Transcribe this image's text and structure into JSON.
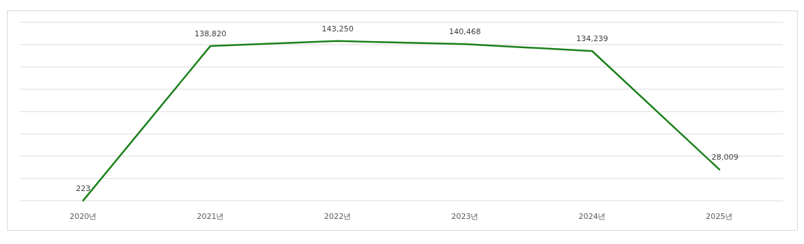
{
  "chart_data": {
    "type": "line",
    "categories": [
      "2020년",
      "2021년",
      "2022년",
      "2023년",
      "2024년",
      "2025년"
    ],
    "values": [
      223,
      138820,
      143250,
      140468,
      134239,
      28009
    ],
    "color": "#1a801a",
    "ylim": [
      0,
      160000
    ],
    "yticks": [
      {
        "value": 0,
        "label": null
      },
      {
        "value": 20000,
        "label": null
      },
      {
        "value": 40000,
        "label": null
      },
      {
        "value": 60000,
        "label": null
      },
      {
        "value": 80000,
        "label": null
      },
      {
        "value": 100000,
        "label": null
      },
      {
        "value": 120000,
        "label": null
      },
      {
        "value": 140000,
        "label": null
      },
      {
        "value": 160000,
        "label": null
      }
    ],
    "grid": "y",
    "value_labels": [
      "223",
      "138,820",
      "143,250",
      "140,468",
      "134,239",
      "28,009"
    ]
  }
}
